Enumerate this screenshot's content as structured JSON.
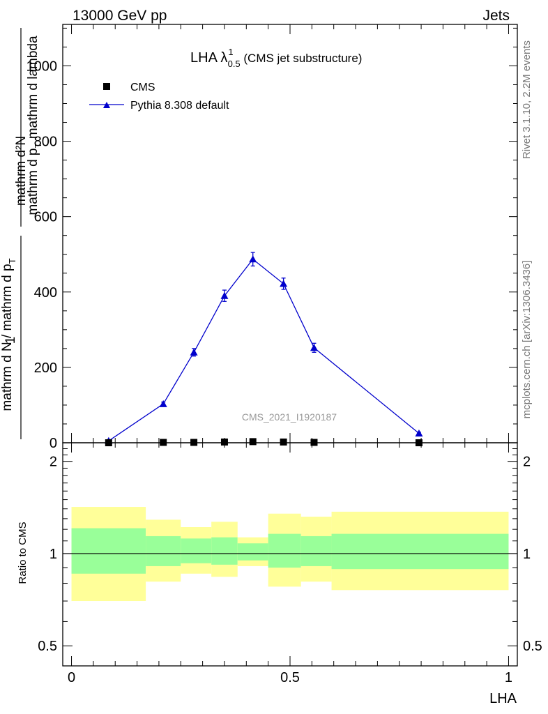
{
  "header": {
    "left": "13000 GeV pp",
    "right": "Jets"
  },
  "side": {
    "rivet": "Rivet 3.1.10,  2.2M events",
    "mcplots": "mcplots.cern.ch [arXiv:1306.3436]"
  },
  "chart_data": [
    {
      "type": "line",
      "title_main": "LHA λ",
      "title_sup": "1",
      "title_sub": "0.5",
      "title_tail": " (CMS jet substructure)",
      "watermark": "CMS_2021_I1920187",
      "ylabel_frac_num": "mathrm d²N",
      "ylabel_num_1": "1",
      "ylabel_den_1": "mathrm d N / mathrm d p",
      "ylabel_den_1_sub": "T",
      "ylabel_num_2_a": "mathrm d p",
      "ylabel_num_2_sub": "T",
      "ylabel_num_2_b": " mathrm d lambda",
      "ylabel_frac_den": "mathrm d p",
      "ylabel_frac_den_sub": "T",
      "ylabel_frac_den_tail": " mathrm d lambda",
      "ylim": [
        0,
        1110
      ],
      "xlim": [
        -0.02,
        1.02
      ],
      "yticks": [
        0,
        200,
        400,
        600,
        800,
        1000
      ],
      "ytick_labels": [
        "0",
        "200",
        "400",
        "600",
        "800",
        "1000"
      ],
      "legend": [
        "CMS",
        "Pythia 8.308 default"
      ],
      "series": [
        {
          "name": "CMS",
          "marker": "square",
          "color": "#000000",
          "x": [
            0.085,
            0.21,
            0.28,
            0.35,
            0.415,
            0.485,
            0.555,
            0.795
          ],
          "y": [
            0,
            1,
            1,
            2,
            3,
            2,
            1,
            0
          ]
        },
        {
          "name": "Pythia 8.308 default",
          "marker": "triangle",
          "color": "#0000cc",
          "x": [
            0.085,
            0.21,
            0.28,
            0.35,
            0.415,
            0.485,
            0.555,
            0.795
          ],
          "y": [
            5,
            103,
            240,
            390,
            487,
            422,
            252,
            25
          ],
          "err": [
            2,
            5,
            10,
            15,
            18,
            15,
            12,
            3
          ]
        }
      ]
    },
    {
      "type": "area",
      "ylabel": "Ratio to CMS",
      "xlabel": "LHA",
      "ylim": [
        0.43,
        2.3
      ],
      "xlim": [
        -0.02,
        1.02
      ],
      "yticks": [
        0.5,
        1,
        2
      ],
      "ytick_labels": [
        "0.5",
        "1",
        "2"
      ],
      "xticks": [
        0,
        0.5,
        1
      ],
      "xtick_labels": [
        "0",
        "0.5",
        "1"
      ],
      "bins": [
        {
          "x0": 0.0,
          "x1": 0.17,
          "yellow_lo": 0.7,
          "yellow_hi": 1.42,
          "green_lo": 0.86,
          "green_hi": 1.21
        },
        {
          "x0": 0.17,
          "x1": 0.25,
          "yellow_lo": 0.81,
          "yellow_hi": 1.29,
          "green_lo": 0.91,
          "green_hi": 1.14
        },
        {
          "x0": 0.25,
          "x1": 0.32,
          "yellow_lo": 0.86,
          "yellow_hi": 1.22,
          "green_lo": 0.93,
          "green_hi": 1.12
        },
        {
          "x0": 0.32,
          "x1": 0.38,
          "yellow_lo": 0.84,
          "yellow_hi": 1.27,
          "green_lo": 0.92,
          "green_hi": 1.13
        },
        {
          "x0": 0.38,
          "x1": 0.45,
          "yellow_lo": 0.91,
          "yellow_hi": 1.13,
          "green_lo": 0.95,
          "green_hi": 1.08
        },
        {
          "x0": 0.45,
          "x1": 0.525,
          "yellow_lo": 0.78,
          "yellow_hi": 1.35,
          "green_lo": 0.9,
          "green_hi": 1.16
        },
        {
          "x0": 0.525,
          "x1": 0.595,
          "yellow_lo": 0.81,
          "yellow_hi": 1.32,
          "green_lo": 0.91,
          "green_hi": 1.14
        },
        {
          "x0": 0.595,
          "x1": 1.0,
          "yellow_lo": 0.76,
          "yellow_hi": 1.37,
          "green_lo": 0.89,
          "green_hi": 1.16
        }
      ],
      "band_colors": {
        "yellow": "#ffff99",
        "green": "#99ff99"
      },
      "reference": 1.0
    }
  ]
}
